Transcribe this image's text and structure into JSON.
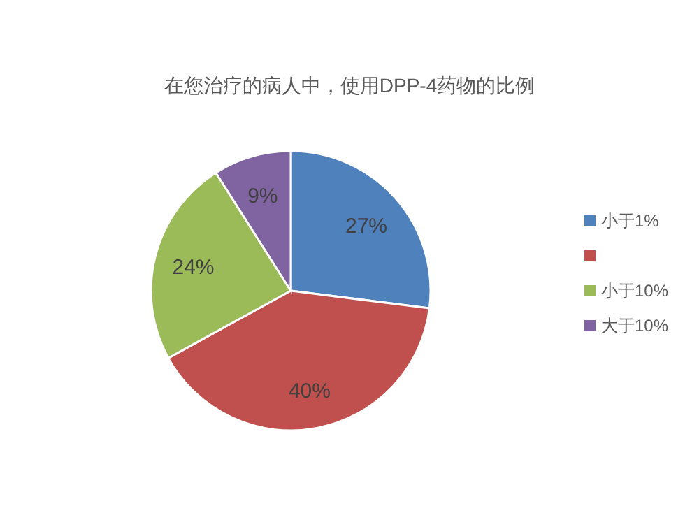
{
  "chart_data": {
    "type": "pie",
    "title": "在您治疗的病人中，使用DPP-4药物的比例",
    "categories": [
      "小于1%",
      null,
      "小于10%",
      "大于10%"
    ],
    "values": [
      27,
      40,
      24,
      9
    ],
    "colors": [
      "#4f81bd",
      "#c0504d",
      "#9bbb59",
      "#8064a2"
    ],
    "value_labels": [
      "27%",
      "40%",
      "24%",
      "9%"
    ],
    "legend": "right"
  }
}
